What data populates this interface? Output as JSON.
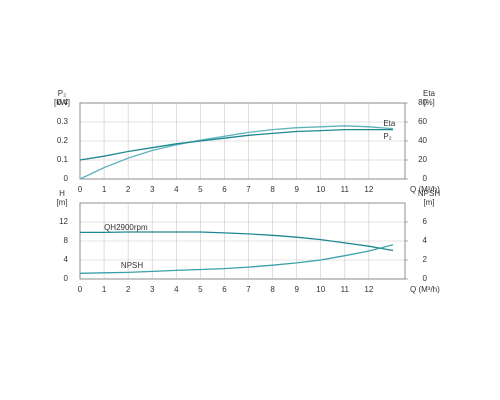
{
  "chart_data": [
    {
      "type": "line",
      "x": [
        0,
        1,
        2,
        3,
        4,
        5,
        6,
        7,
        8,
        9,
        10,
        11,
        12,
        13
      ],
      "x_label": "Q (M³/h)",
      "xlim": [
        0,
        13.5
      ],
      "xticks": [
        0,
        1,
        2,
        3,
        4,
        5,
        6,
        7,
        8,
        9,
        10,
        11,
        12
      ],
      "y_label": "P₂",
      "y_unit": "[kW]",
      "ylim": [
        0,
        0.4
      ],
      "yticks": [
        0,
        0.1,
        0.2,
        0.3,
        0.4
      ],
      "y2_label": "Eta",
      "y2_unit": "[%]",
      "y2lim": [
        0,
        80
      ],
      "y2ticks": [
        0,
        20,
        40,
        60,
        80
      ],
      "grid": true,
      "series": [
        {
          "name": "Eta",
          "axis": "y2",
          "color": "#5fb3bd",
          "values": [
            0,
            12,
            22,
            30,
            36,
            41,
            45,
            49,
            52,
            54,
            55,
            56,
            55,
            53
          ]
        },
        {
          "name": "P₂",
          "color": "#1f8793",
          "values": [
            0.1,
            0.12,
            0.145,
            0.165,
            0.185,
            0.2,
            0.215,
            0.23,
            0.24,
            0.25,
            0.255,
            0.26,
            0.26,
            0.26
          ]
        }
      ]
    },
    {
      "type": "line",
      "x": [
        0,
        1,
        2,
        3,
        4,
        5,
        6,
        7,
        8,
        9,
        10,
        11,
        12,
        13
      ],
      "x_label": "Q (M³/h)",
      "xlim": [
        0,
        13.5
      ],
      "xticks": [
        0,
        1,
        2,
        3,
        4,
        5,
        6,
        7,
        8,
        9,
        10,
        11,
        12
      ],
      "y_label": "H",
      "y_unit": "[m]",
      "ylim": [
        0,
        16
      ],
      "yticks": [
        0,
        4,
        8,
        12
      ],
      "y2_label": "NPSH",
      "y2_unit": "[m]",
      "y2lim": [
        0,
        8
      ],
      "y2ticks": [
        0,
        2,
        4,
        6
      ],
      "grid": true,
      "series": [
        {
          "name": "QH2900rpm",
          "color": "#1f8793",
          "values": [
            9.8,
            9.8,
            9.9,
            9.9,
            9.9,
            9.9,
            9.7,
            9.5,
            9.2,
            8.8,
            8.3,
            7.6,
            6.9,
            6.0
          ]
        },
        {
          "name": "NPSH",
          "axis": "y2",
          "color": "#3aa0aa",
          "values": [
            0.6,
            0.65,
            0.7,
            0.8,
            0.9,
            1.0,
            1.1,
            1.25,
            1.45,
            1.7,
            2.0,
            2.45,
            2.95,
            3.6
          ]
        }
      ]
    }
  ]
}
